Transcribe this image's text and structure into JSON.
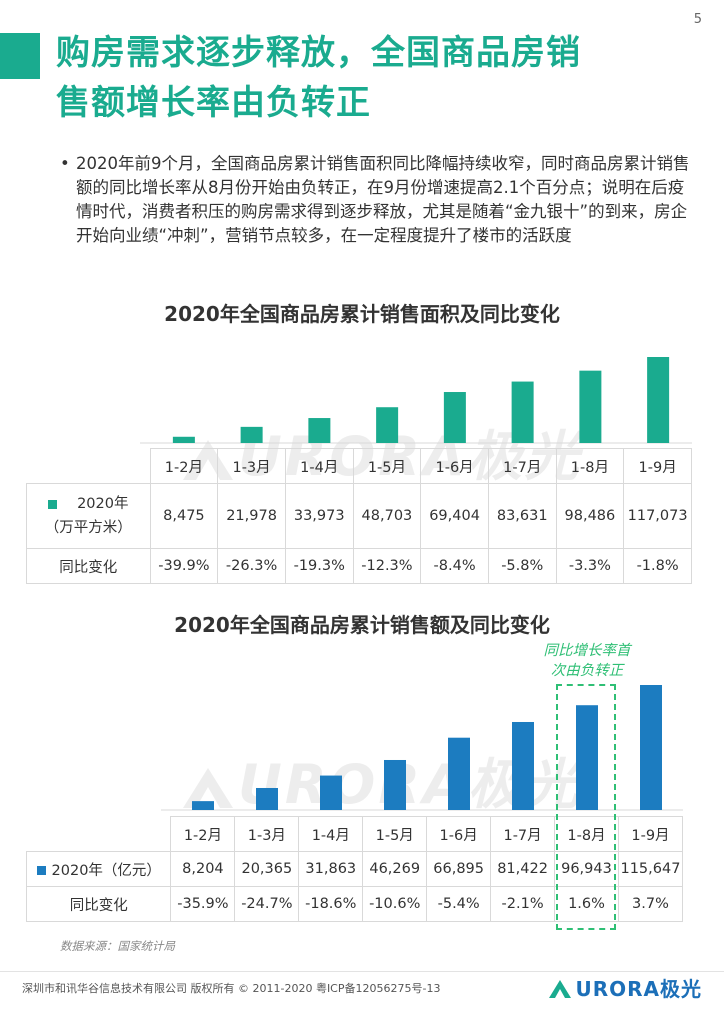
{
  "page": {
    "number": "5"
  },
  "header": {
    "title_line1": "购房需求逐步释放，全国商品房销",
    "title_line2": "售额增长率由负转正"
  },
  "bullet": {
    "marker": "•",
    "text": "2020年前9个月，全国商品房累计销售面积同比降幅持续收窄，同时商品房累计销售额的同比增长率从8月份开始由负转正，在9月份增速提高2.1个百分点；说明在后疫情时代，消费者积压的购房需求得到逐步释放，尤其是随着“金九银十”的到来，房企开始向业绩“冲刺”，营销节点较多，在一定程度提升了楼市的活跃度"
  },
  "watermark": {
    "text": "URORA极光"
  },
  "colors": {
    "accent": "#1aab8f",
    "area_bar": "#1aab8f",
    "sales_bar": "#1c7cc0",
    "annotation": "#2fbf75",
    "brand": "#1c6fb8"
  },
  "chart_data": [
    {
      "type": "bar",
      "title": "2020年全国商品房累计销售面积及同比变化",
      "categories": [
        "1-2月",
        "1-3月",
        "1-4月",
        "1-5月",
        "1-6月",
        "1-7月",
        "1-8月",
        "1-9月"
      ],
      "series": [
        {
          "name": "2020年（万平方米）",
          "values": [
            8475,
            21978,
            33973,
            48703,
            69404,
            83631,
            98486,
            117073
          ]
        }
      ],
      "value_labels": [
        "8,475",
        "21,978",
        "33,973",
        "48,703",
        "69,404",
        "83,631",
        "98,486",
        "117,073"
      ],
      "row_labels": {
        "series_line1": "2020年",
        "series_line2": "（万平方米）",
        "yoy": "同比变化"
      },
      "yoy": [
        "-39.9%",
        "-26.3%",
        "-19.3%",
        "-12.3%",
        "-8.4%",
        "-5.8%",
        "-3.3%",
        "-1.8%"
      ]
    },
    {
      "type": "bar",
      "title": "2020年全国商品房累计销售额及同比变化",
      "categories": [
        "1-2月",
        "1-3月",
        "1-4月",
        "1-5月",
        "1-6月",
        "1-7月",
        "1-8月",
        "1-9月"
      ],
      "series": [
        {
          "name": "2020年（亿元）",
          "values": [
            8204,
            20365,
            31863,
            46269,
            66895,
            81422,
            96943,
            115647
          ]
        }
      ],
      "value_labels": [
        "8,204",
        "20,365",
        "31,863",
        "46,269",
        "66,895",
        "81,422",
        "96,943",
        "115,647"
      ],
      "row_labels": {
        "series": "2020年（亿元）",
        "yoy": "同比变化"
      },
      "yoy": [
        "-35.9%",
        "-24.7%",
        "-18.6%",
        "-10.6%",
        "-5.4%",
        "-2.1%",
        "1.6%",
        "3.7%"
      ],
      "annotation": {
        "line1": "同比增长率首",
        "line2": "次由负转正"
      }
    }
  ],
  "source": "数据来源：国家统计局",
  "footer": {
    "copyright": "深圳市和讯华谷信息技术有限公司 版权所有 © 2011-2020 粤ICP备12056275号-13",
    "brand": "URORA极光"
  }
}
